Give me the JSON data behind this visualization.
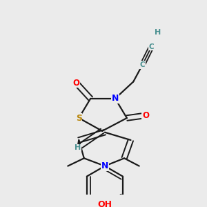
{
  "bg_color": "#ebebeb",
  "atom_colors": {
    "C": "#000000",
    "N": "#0000ff",
    "O": "#ff0000",
    "S": "#b8860b",
    "H_teal": "#4a9090",
    "OH": "#ff0000"
  },
  "bond_color": "#1a1a1a",
  "figsize": [
    3.0,
    3.0
  ],
  "dpi": 100
}
